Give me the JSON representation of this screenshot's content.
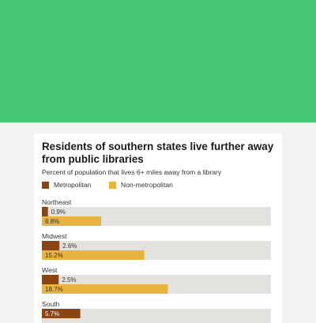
{
  "chart_data": {
    "type": "bar",
    "orientation": "horizontal",
    "title": "Residents of southern states live further away from public libraries",
    "subtitle": "Percent of population that lives 6+ miles away from a library",
    "legend_placement": "top-left",
    "xlim": [
      0,
      34
    ],
    "categories": [
      "Northeast",
      "Midwest",
      "West",
      "South"
    ],
    "series": [
      {
        "name": "Metropolitan",
        "color": "#8b4513",
        "values": [
          0.9,
          2.6,
          2.5,
          5.7
        ],
        "labels": [
          "0.9%",
          "2.6%",
          "2.5%",
          "5.7%"
        ]
      },
      {
        "name": "Non-metropolitan",
        "color": "#e8b43f",
        "values": [
          8.8,
          15.2,
          18.7,
          null
        ],
        "labels": [
          "8.8%",
          "15.2%",
          "18.7%",
          ""
        ]
      }
    ],
    "track_color": "#e4e2df"
  }
}
